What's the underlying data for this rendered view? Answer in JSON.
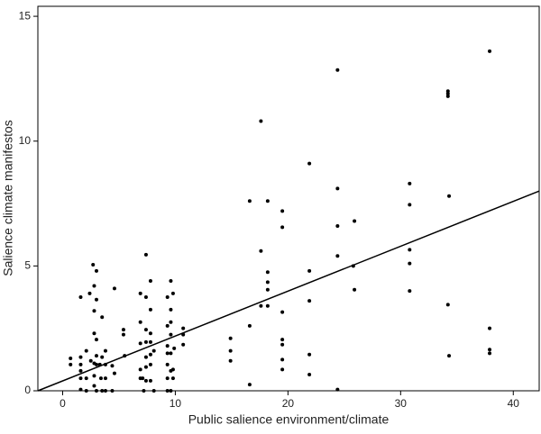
{
  "chart_data": {
    "type": "scatter",
    "xlabel": "Public salience environment/climate",
    "ylabel": "Salience climate manifestos",
    "x": [
      37.9,
      34.2,
      34.2,
      34.2,
      34.3,
      34.2,
      34.3,
      37.9,
      37.9,
      37.9,
      30.8,
      30.8,
      30.8,
      30.8,
      30.8,
      24.4,
      24.4,
      24.4,
      24.4,
      24.4,
      25.9,
      25.8,
      25.9,
      21.9,
      21.9,
      21.9,
      21.9,
      21.9,
      17.6,
      16.6,
      18.2,
      16.6,
      16.6,
      17.6,
      17.6,
      18.2,
      18.2,
      18.2,
      18.2,
      19.5,
      19.5,
      19.5,
      19.5,
      19.5,
      19.5,
      19.5,
      14.9,
      14.9,
      14.9,
      0.7,
      0.7,
      1.6,
      1.6,
      1.6,
      1.6,
      1.6,
      1.6,
      2.1,
      2.1,
      2.1,
      2.4,
      2.5,
      2.7,
      2.8,
      2.8,
      2.8,
      2.8,
      2.8,
      2.8,
      3.0,
      3.0,
      3.0,
      3.0,
      3.0,
      3.0,
      3.3,
      3.4,
      3.5,
      3.5,
      3.5,
      3.8,
      3.8,
      3.8,
      3.8,
      4.4,
      4.4,
      4.6,
      4.6,
      5.4,
      5.4,
      5.5,
      6.9,
      6.9,
      6.9,
      6.9,
      6.9,
      7.1,
      7.2,
      7.4,
      7.4,
      7.4,
      7.4,
      7.4,
      7.4,
      7.4,
      7.8,
      7.8,
      7.8,
      7.8,
      7.8,
      7.8,
      7.8,
      8.1,
      8.1,
      9.3,
      9.3,
      9.3,
      9.3,
      9.3,
      9.3,
      9.3,
      9.6,
      9.6,
      9.6,
      9.6,
      9.6,
      9.6,
      9.6,
      9.8,
      9.8,
      9.8,
      9.9,
      10.7,
      10.7,
      10.7
    ],
    "values": [
      13.6,
      11.9,
      11.8,
      12.0,
      7.8,
      3.45,
      1.4,
      2.5,
      1.65,
      1.5,
      8.3,
      7.45,
      5.65,
      5.1,
      4.0,
      12.85,
      8.1,
      6.6,
      5.4,
      0.05,
      6.8,
      5.0,
      4.05,
      9.1,
      4.8,
      3.6,
      1.45,
      0.65,
      10.8,
      7.6,
      7.6,
      2.6,
      0.25,
      5.6,
      3.4,
      4.75,
      4.35,
      4.05,
      3.4,
      7.2,
      6.55,
      3.15,
      2.05,
      1.85,
      1.25,
      0.85,
      2.1,
      1.6,
      1.2,
      1.3,
      1.05,
      3.75,
      1.35,
      1.05,
      0.8,
      0.5,
      0.05,
      1.6,
      0.5,
      0,
      3.9,
      1.2,
      5.05,
      4.2,
      3.2,
      2.3,
      1.1,
      0.6,
      0.2,
      4.8,
      3.65,
      2.05,
      1.4,
      1.05,
      0,
      1.05,
      0.5,
      2.95,
      1.35,
      0,
      1.6,
      1.05,
      0.5,
      0,
      1.0,
      0,
      4.1,
      0.7,
      2.45,
      2.25,
      1.4,
      3.9,
      2.75,
      1.9,
      0.85,
      0.5,
      0.5,
      0,
      5.45,
      3.75,
      2.45,
      1.95,
      1.35,
      0.95,
      0.4,
      4.4,
      3.25,
      2.3,
      1.95,
      1.45,
      1.05,
      0.4,
      1.6,
      0,
      3.75,
      2.6,
      1.8,
      1.5,
      1.05,
      0.5,
      0,
      4.4,
      3.25,
      2.75,
      2.25,
      1.5,
      0.8,
      0,
      3.9,
      0.85,
      0.5,
      1.7,
      2.5,
      2.25,
      1.85
    ],
    "color": "#000000",
    "fit_line": {
      "x": [
        -2.2,
        42.3
      ],
      "y": [
        0,
        8.0
      ]
    },
    "xlim": [
      -2.2,
      42.3
    ],
    "ylim": [
      0,
      15.4
    ],
    "xticks": [
      0,
      10,
      20,
      30,
      40
    ],
    "yticks": [
      0,
      5,
      10,
      15
    ]
  }
}
